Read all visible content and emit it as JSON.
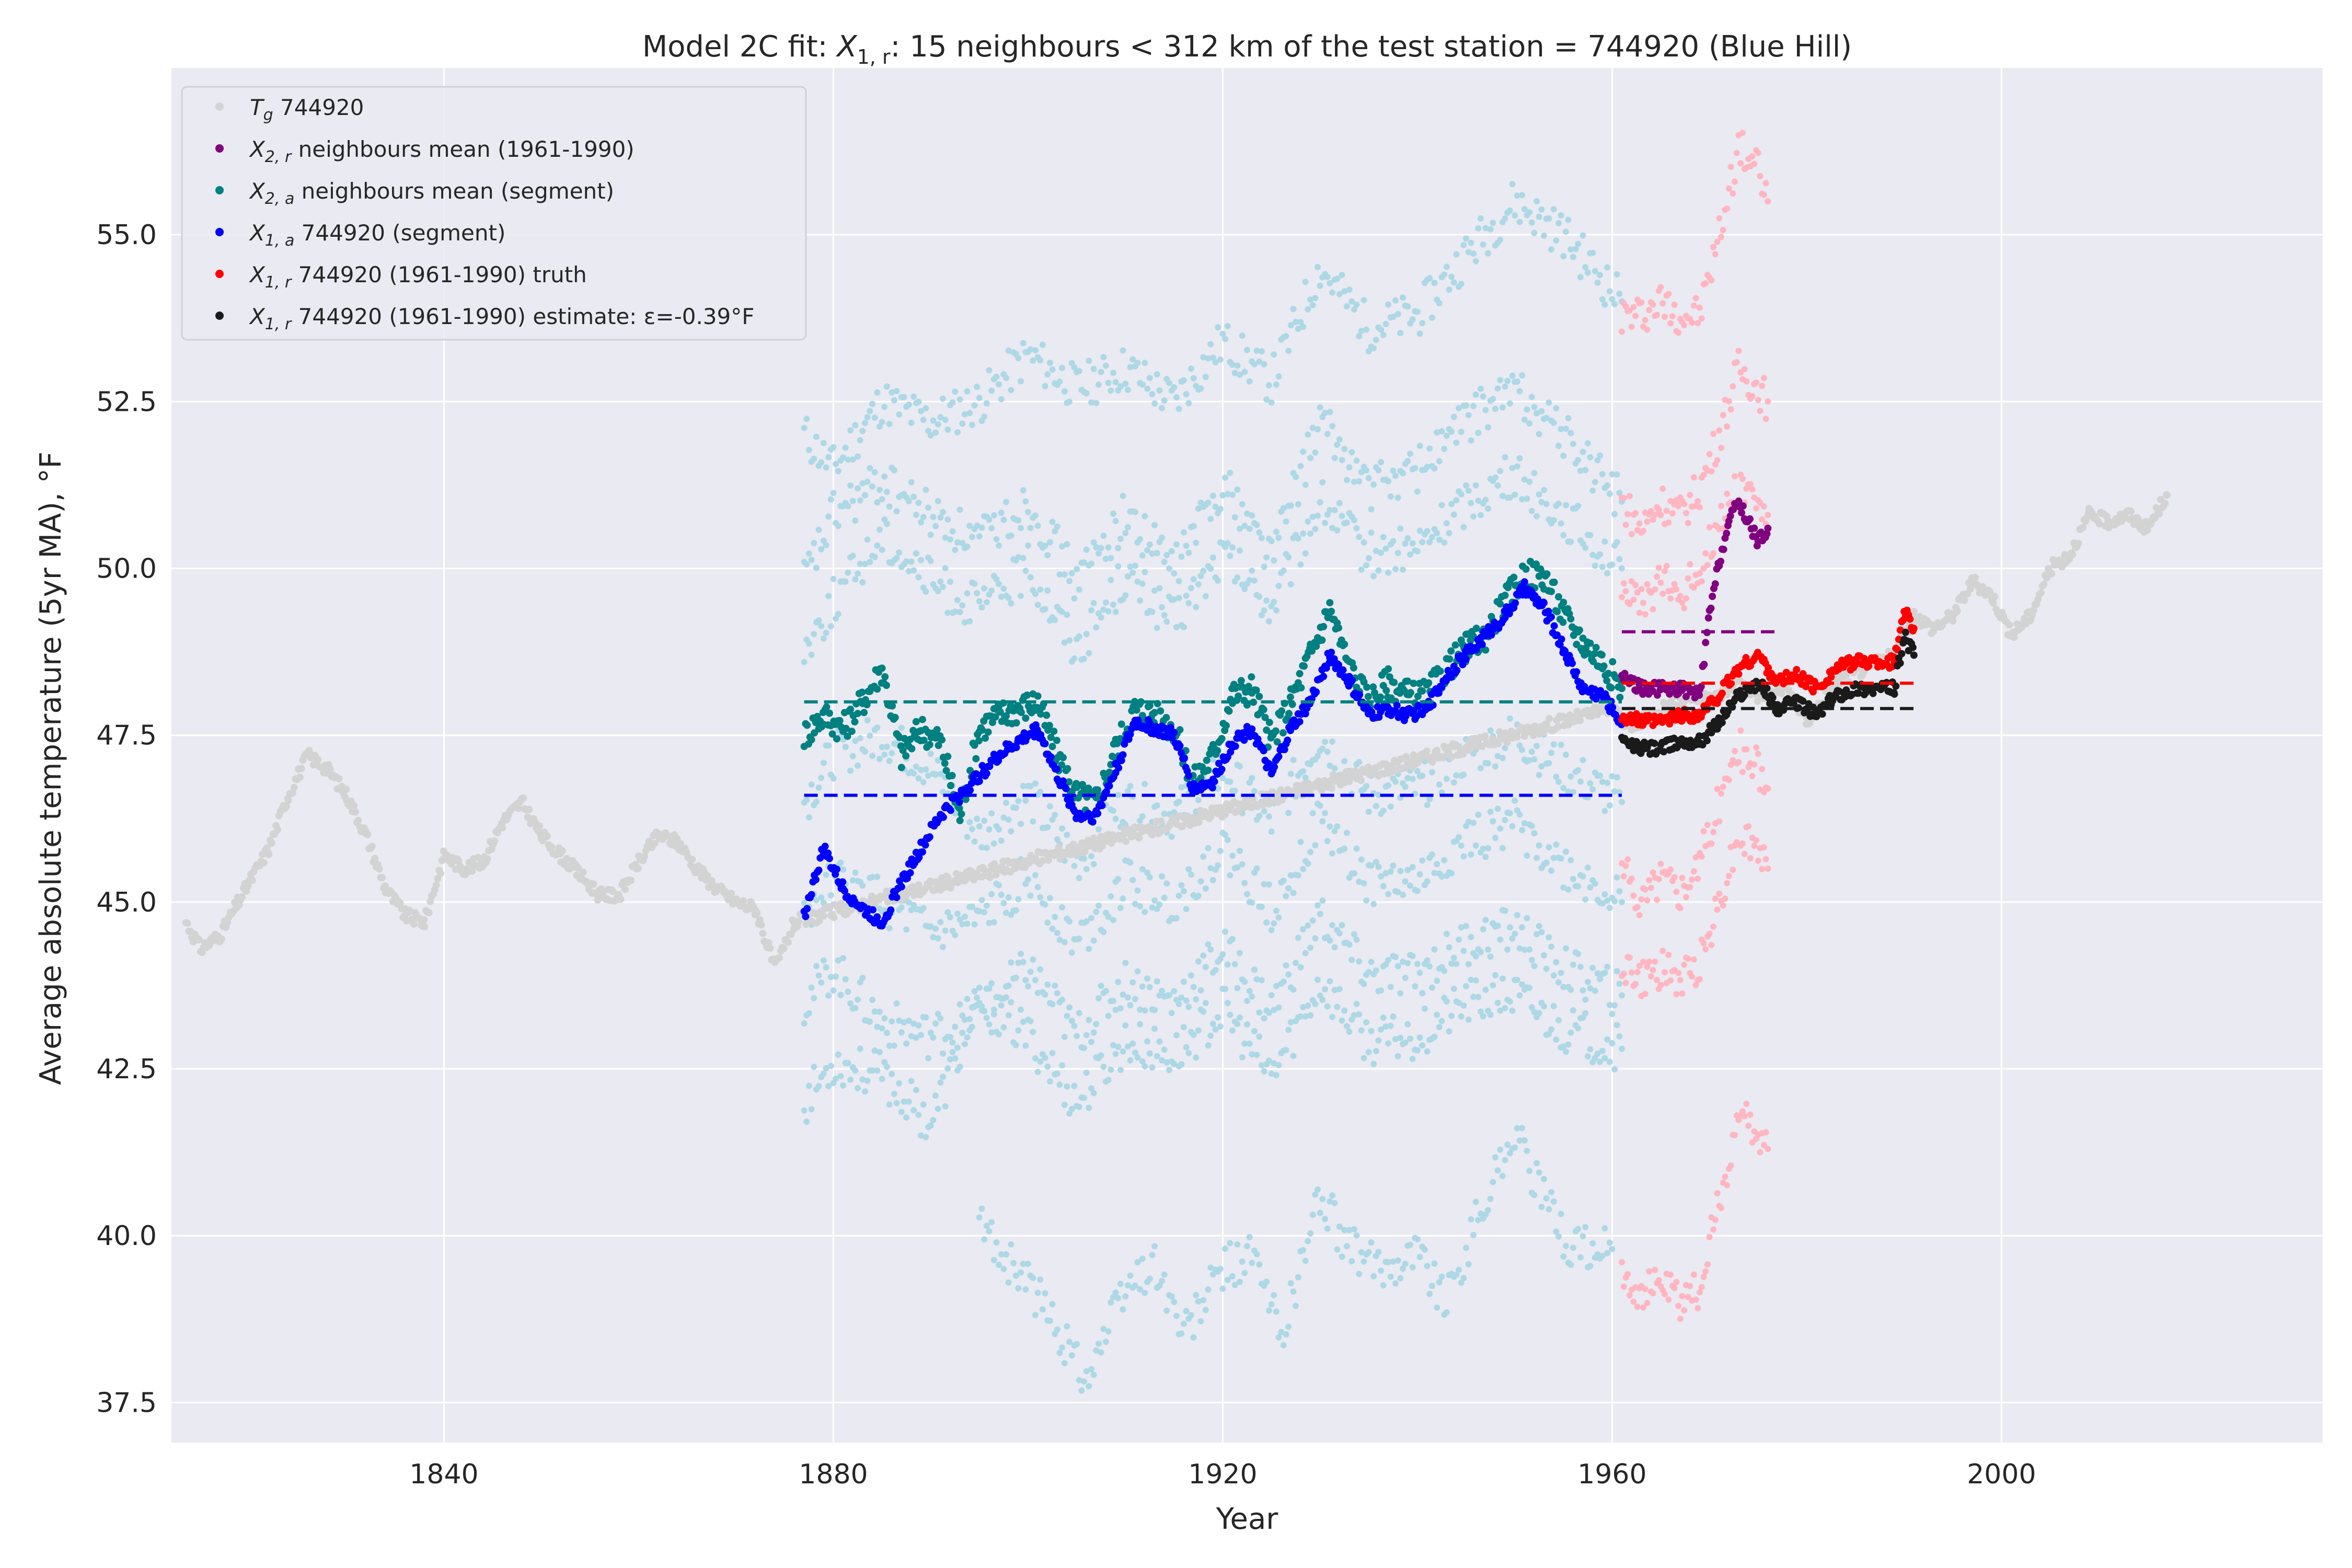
{
  "chart_data": {
    "type": "scatter",
    "title": "Model 2C fit: X₁,ᵣ: 15 neighbours < 312 km of the test station = 744920 (Blue Hill)",
    "xlabel": "Year",
    "ylabel": "Average absolute temperature (5yr MA), °F",
    "xlim": [
      1812,
      2033
    ],
    "ylim": [
      36.9,
      57.5
    ],
    "x_ticks": [
      "1840",
      "1880",
      "1920",
      "1960",
      "2000"
    ],
    "y_ticks": [
      "37.5",
      "40.0",
      "42.5",
      "45.0",
      "47.5",
      "50.0",
      "52.5",
      "55.0"
    ],
    "grid": true,
    "legend_position": "top-left",
    "colors": {
      "tg": "#d3d3d3",
      "x2r": "#800080",
      "x2a": "#008080",
      "x1a": "#0000ff",
      "truth": "#ff0000",
      "estimate": "#1a1a1a",
      "neighbours_segment": "#add8e6",
      "neighbours_ref": "#ffb6c1",
      "background": "#eaeaf2"
    },
    "series": [
      {
        "key": "tg",
        "name": "T_g 744920",
        "label_main": "T",
        "label_sub": "g",
        "label_rest": " 744920",
        "x": [
          1813.5,
          1815,
          1817,
          1820,
          1822,
          1824,
          1826,
          1828,
          1830,
          1832,
          1834,
          1836,
          1838,
          1840,
          1842,
          1844,
          1846,
          1848,
          1850,
          1852,
          1854,
          1856,
          1858,
          1860,
          1862,
          1864,
          1866,
          1868,
          1870,
          1872,
          1874,
          1876,
          1960,
          1962,
          1965,
          1968,
          1970,
          1973,
          1975,
          1978,
          1980,
          1983,
          1986,
          1989,
          1991,
          1993,
          1995,
          1997,
          1999,
          2001,
          2003,
          2005,
          2007,
          2009,
          2011,
          2013,
          2015,
          2017
        ],
        "y": [
          44.7,
          44.3,
          44.5,
          45.3,
          45.8,
          46.6,
          47.2,
          47.0,
          46.6,
          46.0,
          45.2,
          44.8,
          44.7,
          45.7,
          45.5,
          45.6,
          46.2,
          46.5,
          46.0,
          45.7,
          45.4,
          45.1,
          45.1,
          45.6,
          46.0,
          45.9,
          45.5,
          45.2,
          45.0,
          44.9,
          44.0,
          44.7,
          47.9,
          47.6,
          47.9,
          48.1,
          48.0,
          48.3,
          48.1,
          48.2,
          47.7,
          48.3,
          48.5,
          48.7,
          49.3,
          49.1,
          49.3,
          49.8,
          49.6,
          49.0,
          49.3,
          50.0,
          50.2,
          50.8,
          50.7,
          50.8,
          50.6,
          51.1
        ]
      },
      {
        "key": "x2r",
        "name": "X_2,r neighbours mean (1961-1990)",
        "label_main": "X",
        "label_sub": "2, r",
        "label_rest": " neighbours mean (1961-1990)",
        "x": [
          1961,
          1963,
          1965,
          1967,
          1969,
          1970,
          1971,
          1972,
          1973,
          1974,
          1975,
          1976
        ],
        "y": [
          48.4,
          48.2,
          48.2,
          48.2,
          48.1,
          49.3,
          50.1,
          50.7,
          51.0,
          50.7,
          50.4,
          50.6
        ]
      },
      {
        "key": "x2a",
        "name": "X_2,a neighbours mean (segment)",
        "label_main": "X",
        "label_sub": "2, a",
        "label_rest": " neighbours mean (segment)",
        "x": [
          1877,
          1879,
          1881,
          1883,
          1885,
          1887,
          1889,
          1891,
          1893,
          1895,
          1897,
          1899,
          1901,
          1903,
          1905,
          1907,
          1909,
          1911,
          1913,
          1915,
          1917,
          1919,
          1921,
          1923,
          1925,
          1927,
          1929,
          1931,
          1933,
          1935,
          1937,
          1939,
          1941,
          1943,
          1945,
          1947,
          1949,
          1951,
          1953,
          1955,
          1957,
          1959,
          1961
        ],
        "y": [
          47.5,
          47.8,
          47.6,
          48.0,
          48.5,
          47.2,
          47.6,
          47.4,
          46.3,
          47.6,
          47.8,
          47.9,
          48.0,
          47.2,
          46.6,
          46.5,
          47.3,
          47.9,
          47.8,
          47.6,
          46.8,
          47.2,
          48.1,
          48.2,
          47.4,
          48.0,
          48.7,
          49.4,
          48.5,
          48.0,
          48.3,
          48.1,
          48.1,
          48.5,
          48.8,
          49.0,
          49.5,
          49.9,
          49.9,
          49.3,
          48.9,
          48.6,
          48.2
        ]
      },
      {
        "key": "x1a",
        "name": "X_1,a 744920 (segment)",
        "label_main": "X",
        "label_sub": "1, a",
        "label_rest": " 744920 (segment)",
        "x": [
          1877,
          1879,
          1881,
          1883,
          1885,
          1887,
          1889,
          1891,
          1893,
          1895,
          1897,
          1899,
          1901,
          1903,
          1905,
          1907,
          1909,
          1911,
          1913,
          1915,
          1917,
          1919,
          1921,
          1923,
          1925,
          1927,
          1929,
          1931,
          1933,
          1935,
          1937,
          1939,
          1941,
          1943,
          1945,
          1947,
          1949,
          1951,
          1953,
          1955,
          1957,
          1959,
          1961
        ],
        "y": [
          44.8,
          45.8,
          45.2,
          44.9,
          44.7,
          45.3,
          45.8,
          46.3,
          46.6,
          46.9,
          47.2,
          47.4,
          47.6,
          46.9,
          46.3,
          46.3,
          47.0,
          47.7,
          47.6,
          47.5,
          46.7,
          46.8,
          47.4,
          47.6,
          46.9,
          47.6,
          48.0,
          48.7,
          48.3,
          47.8,
          47.9,
          47.8,
          47.9,
          48.4,
          48.7,
          49.0,
          49.3,
          49.7,
          49.4,
          48.8,
          48.2,
          48.1,
          47.7
        ]
      },
      {
        "key": "truth",
        "name": "X_1,r 744920 (1961-1990) truth",
        "label_main": "X",
        "label_sub": "1, r",
        "label_rest": " 744920 (1961-1990) truth",
        "x": [
          1961,
          1963,
          1965,
          1967,
          1969,
          1971,
          1973,
          1975,
          1977,
          1979,
          1981,
          1983,
          1985,
          1987,
          1989,
          1990,
          1991
        ],
        "y": [
          47.8,
          47.7,
          47.7,
          47.8,
          47.8,
          48.1,
          48.5,
          48.7,
          48.3,
          48.4,
          48.2,
          48.5,
          48.6,
          48.6,
          48.6,
          49.4,
          49.1
        ]
      },
      {
        "key": "estimate",
        "name": "X_1,r 744920 (1961-1990) estimate: ε=-0.39°F",
        "label_main": "X",
        "label_sub": "1, r",
        "label_rest": " 744920 (1961-1990) estimate: ε=-0.39°F",
        "x": [
          1961,
          1963,
          1965,
          1967,
          1969,
          1971,
          1973,
          1975,
          1977,
          1979,
          1981,
          1983,
          1985,
          1987,
          1989,
          1990,
          1991
        ],
        "y": [
          47.4,
          47.3,
          47.3,
          47.4,
          47.4,
          47.7,
          48.1,
          48.3,
          47.9,
          48.0,
          47.8,
          48.1,
          48.2,
          48.2,
          48.2,
          49.0,
          48.7
        ]
      }
    ],
    "reference_lines": [
      {
        "key": "x2a",
        "x1": 1877,
        "x2": 1961,
        "y": 48.0
      },
      {
        "key": "x1a",
        "x1": 1877,
        "x2": 1961,
        "y": 46.6
      },
      {
        "key": "x2r",
        "x1": 1961,
        "x2": 1977,
        "y": 49.05
      },
      {
        "key": "truth",
        "x1": 1961,
        "x2": 1991,
        "y": 48.28
      },
      {
        "key": "estimate",
        "x1": 1961,
        "x2": 1991,
        "y": 47.9
      }
    ],
    "neighbour_segment_series": [
      {
        "x": [
          1877,
          1880,
          1885,
          1890,
          1895,
          1900,
          1905,
          1910,
          1915,
          1920,
          1925,
          1930,
          1935,
          1940,
          1945,
          1950,
          1955,
          1961
        ],
        "y": [
          52.0,
          51.5,
          52.5,
          52.2,
          52.5,
          53.2,
          52.7,
          53.0,
          52.5,
          53.4,
          52.8,
          54.5,
          53.6,
          53.8,
          54.7,
          55.5,
          55.0,
          54.0
        ]
      },
      {
        "x": [
          1877,
          1880,
          1885,
          1890,
          1895,
          1900,
          1905,
          1910,
          1915,
          1920,
          1925,
          1930,
          1935,
          1940,
          1945,
          1950,
          1955,
          1961
        ],
        "y": [
          49.8,
          50.8,
          51.3,
          50.8,
          50.4,
          51.0,
          49.8,
          50.8,
          50.0,
          51.3,
          50.2,
          52.2,
          51.2,
          51.5,
          52.2,
          52.7,
          52.0,
          51.0
        ]
      },
      {
        "x": [
          1877,
          1880,
          1885,
          1890,
          1895,
          1900,
          1905,
          1910,
          1915,
          1920,
          1925,
          1930,
          1935,
          1940,
          1945,
          1950,
          1955,
          1961
        ],
        "y": [
          48.8,
          49.5,
          50.5,
          49.8,
          49.4,
          50.0,
          48.8,
          49.9,
          49.2,
          50.2,
          49.4,
          51.0,
          50.2,
          50.3,
          51.0,
          51.4,
          50.8,
          50.0
        ]
      },
      {
        "x": [
          1877,
          1880,
          1885,
          1890,
          1895,
          1900,
          1905,
          1910,
          1915,
          1920,
          1925,
          1930,
          1935,
          1940,
          1945,
          1950,
          1955,
          1961
        ],
        "y": [
          46.5,
          47.2,
          47.5,
          47.0,
          46.0,
          46.6,
          45.6,
          46.5,
          46.3,
          47.0,
          46.2,
          47.5,
          46.6,
          46.7,
          47.2,
          47.5,
          47.0,
          46.5
        ]
      },
      {
        "x": [
          1877,
          1880,
          1885,
          1890,
          1895,
          1900,
          1905,
          1910,
          1915,
          1920,
          1925,
          1930,
          1935,
          1940,
          1945,
          1950,
          1955,
          1961
        ],
        "y": [
          44.8,
          45.3,
          45.0,
          44.5,
          44.7,
          45.4,
          44.4,
          45.3,
          45.0,
          45.8,
          44.9,
          46.2,
          45.3,
          45.3,
          45.9,
          46.2,
          45.5,
          45.0
        ]
      },
      {
        "x": [
          1877,
          1880,
          1885,
          1890,
          1895,
          1900,
          1905,
          1910,
          1915,
          1920,
          1925,
          1930,
          1935,
          1940,
          1945,
          1950,
          1955,
          1961
        ],
        "y": [
          43.5,
          44.0,
          43.2,
          43.0,
          43.3,
          44.0,
          43.0,
          43.8,
          43.5,
          44.3,
          43.4,
          44.8,
          43.9,
          43.9,
          44.4,
          44.6,
          44.0,
          43.6
        ]
      },
      {
        "x": [
          1877,
          1880,
          1885,
          1890,
          1895,
          1900,
          1905,
          1910,
          1915,
          1920,
          1925,
          1930,
          1935,
          1940,
          1945,
          1950,
          1955,
          1961
        ],
        "y": [
          42.0,
          42.6,
          42.4,
          41.7,
          43.5,
          43.0,
          42.0,
          42.9,
          42.7,
          43.4,
          42.4,
          43.8,
          42.9,
          43.0,
          43.5,
          43.6,
          43.1,
          42.8
        ]
      },
      {
        "x": [
          1895,
          1898,
          1900,
          1903,
          1906,
          1910,
          1913,
          1916,
          1920,
          1923,
          1926,
          1930,
          1933,
          1936,
          1940,
          1943,
          1946,
          1950,
          1953,
          1956,
          1960
        ],
        "y": [
          40.2,
          39.6,
          39.3,
          38.6,
          37.9,
          39.2,
          39.6,
          38.5,
          39.5,
          39.7,
          38.5,
          40.6,
          39.8,
          39.5,
          39.8,
          39.0,
          40.2,
          41.6,
          40.5,
          39.8,
          39.8
        ]
      }
    ],
    "neighbour_ref_series": [
      {
        "x": [
          1961,
          1963,
          1965,
          1967,
          1969,
          1971,
          1973,
          1975,
          1976
        ],
        "y": [
          53.8,
          53.8,
          54.0,
          53.8,
          53.8,
          55.0,
          56.3,
          56.0,
          55.5
        ]
      },
      {
        "x": [
          1961,
          1963,
          1965,
          1967,
          1969,
          1971,
          1973,
          1975,
          1976
        ],
        "y": [
          51.0,
          50.6,
          51.0,
          50.8,
          51.2,
          52.0,
          53.0,
          52.7,
          52.5
        ]
      },
      {
        "x": [
          1961,
          1963,
          1965,
          1967,
          1969,
          1971,
          1973,
          1975,
          1976
        ],
        "y": [
          49.8,
          49.4,
          49.8,
          49.6,
          50.0,
          50.7,
          51.3,
          51.0,
          50.8
        ]
      },
      {
        "x": [
          1961,
          1963,
          1965,
          1967,
          1969,
          1971,
          1973,
          1975,
          1976
        ],
        "y": [
          45.5,
          45.0,
          45.4,
          45.2,
          45.6,
          46.5,
          47.3,
          47.0,
          46.7
        ]
      },
      {
        "x": [
          1961,
          1963,
          1965,
          1967,
          1969,
          1971,
          1973,
          1975,
          1976
        ],
        "y": [
          44.1,
          43.8,
          44.0,
          43.8,
          44.1,
          45.0,
          46.0,
          45.8,
          45.5
        ]
      },
      {
        "x": [
          1961,
          1963,
          1965,
          1967,
          1969,
          1971,
          1973,
          1975,
          1976
        ],
        "y": [
          39.5,
          39.1,
          39.3,
          39.0,
          39.2,
          40.5,
          41.8,
          41.5,
          41.3
        ]
      }
    ]
  }
}
